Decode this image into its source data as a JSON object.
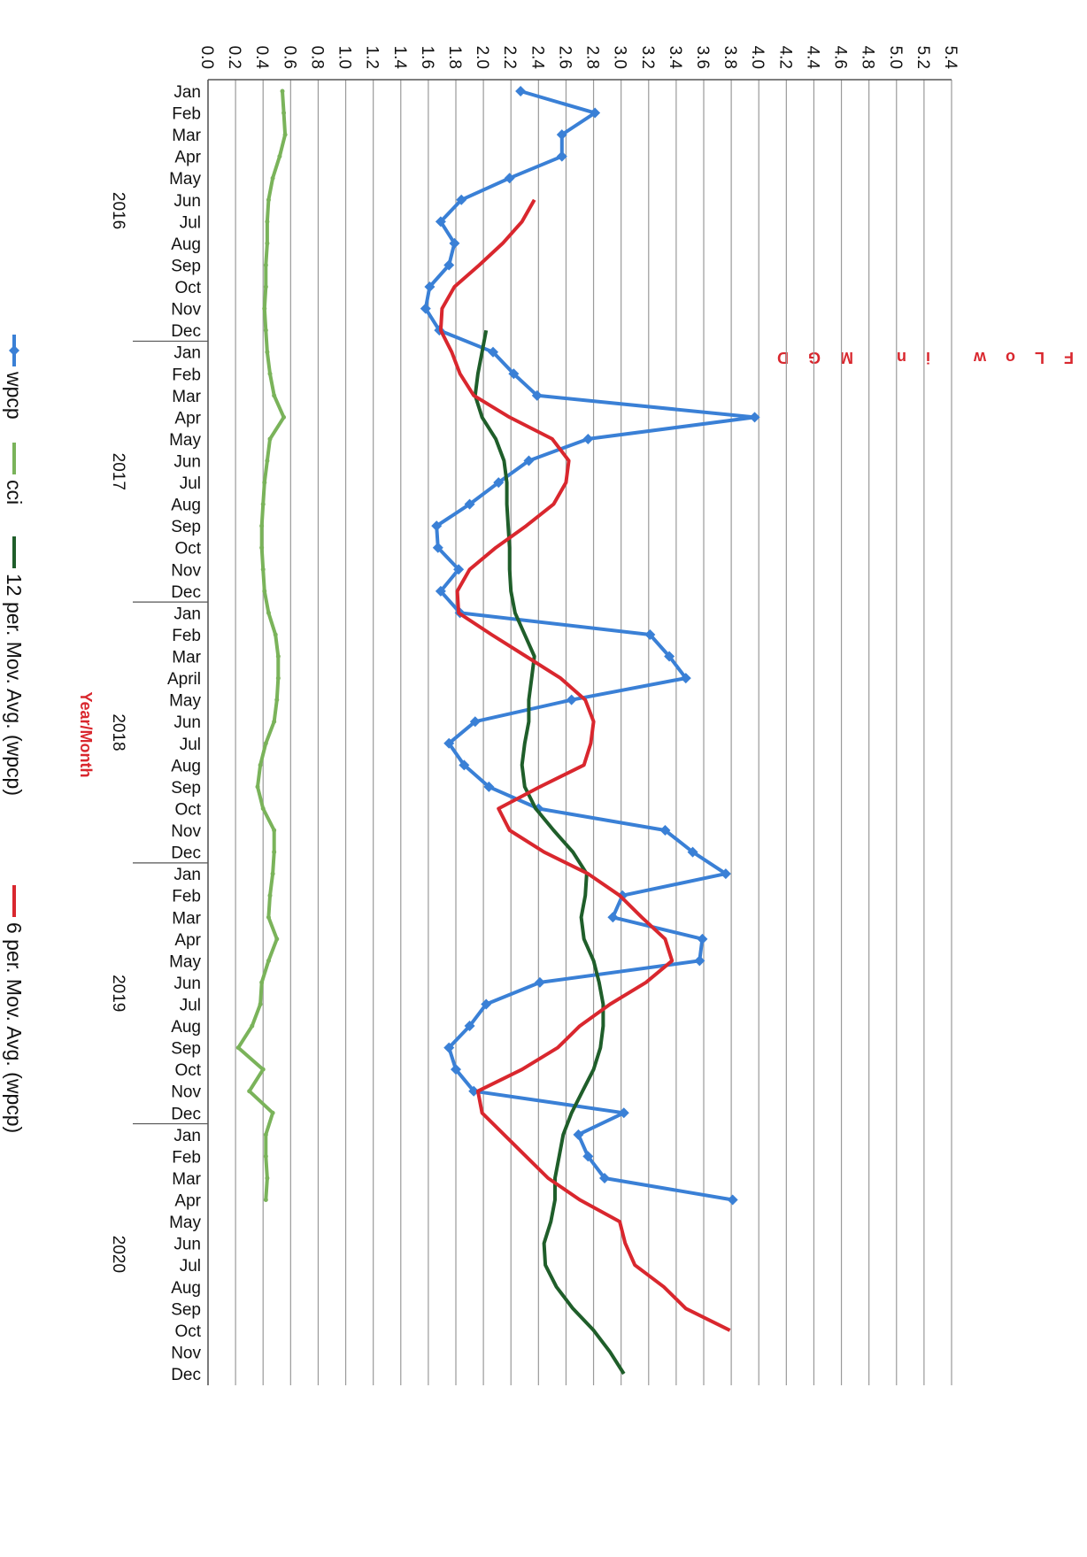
{
  "chart_data": {
    "type": "line",
    "y_label": "FLow in MGD",
    "x_label": "Year/Month",
    "years": [
      "2016",
      "2017",
      "2018",
      "2019",
      "2020"
    ],
    "categories": [
      "Jan",
      "Feb",
      "Mar",
      "Apr",
      "May",
      "Jun",
      "Jul",
      "Aug",
      "Sep",
      "Oct",
      "Nov",
      "Dec",
      "Jan",
      "Feb",
      "Mar",
      "Apr",
      "May",
      "Jun",
      "Jul",
      "Aug",
      "Sep",
      "Oct",
      "Nov",
      "Dec",
      "Jan",
      "Feb",
      "Mar",
      "April",
      "May",
      "Jun",
      "Jul",
      "Aug",
      "Sep",
      "Oct",
      "Nov",
      "Dec",
      "Jan",
      "Feb",
      "Mar",
      "Apr",
      "May",
      "Jun",
      "Jul",
      "Aug",
      "Sep",
      "Oct",
      "Nov",
      "Dec",
      "Jan",
      "Feb",
      "Mar",
      "Apr",
      "May",
      "Jun",
      "Jul",
      "Aug",
      "Sep",
      "Oct",
      "Nov",
      "Dec"
    ],
    "ylim": [
      0,
      5.4
    ],
    "yticks": [
      {
        "value": 0,
        "label": "0.0"
      },
      0.2,
      0.4,
      0.6,
      0.8,
      {
        "value": 1,
        "label": "1.0"
      },
      1.2,
      1.4,
      1.6,
      1.8,
      {
        "value": 2,
        "label": "2.0"
      },
      2.2,
      2.4,
      2.6,
      2.8,
      {
        "value": 3,
        "label": "3.0"
      },
      3.2,
      3.4,
      3.6,
      3.8,
      {
        "value": 4,
        "label": "4.0"
      },
      4.2,
      4.4,
      4.6,
      4.8,
      {
        "value": 5,
        "label": "5.0"
      },
      5.2,
      5.4
    ],
    "grid": true,
    "series": [
      {
        "name": "wpcp",
        "color": "#3a80d6",
        "marker": "diamond",
        "values": [
          2.27,
          2.81,
          2.57,
          2.57,
          2.19,
          1.84,
          1.69,
          1.79,
          1.75,
          1.61,
          1.58,
          1.68,
          2.07,
          2.22,
          2.39,
          3.97,
          2.76,
          2.33,
          2.11,
          1.9,
          1.66,
          1.67,
          1.82,
          1.69,
          1.83,
          3.21,
          3.35,
          3.47,
          2.64,
          1.94,
          1.75,
          1.86,
          2.04,
          2.4,
          3.32,
          3.52,
          3.76,
          3.01,
          2.94,
          3.59,
          3.57,
          2.41,
          2.02,
          1.9,
          1.75,
          1.8,
          1.93,
          3.02,
          2.69,
          2.76,
          2.88,
          3.81,
          null,
          null,
          null,
          null,
          null,
          null,
          null,
          null
        ]
      },
      {
        "name": "cci",
        "color": "#7ab35a",
        "marker": "dot",
        "values": [
          0.54,
          0.55,
          0.56,
          0.52,
          0.47,
          0.44,
          0.43,
          0.43,
          0.42,
          0.42,
          0.41,
          0.42,
          0.43,
          0.45,
          0.48,
          0.55,
          0.45,
          0.43,
          0.41,
          0.4,
          0.39,
          0.39,
          0.4,
          0.41,
          0.44,
          0.49,
          0.51,
          0.51,
          0.5,
          0.48,
          0.42,
          0.38,
          0.36,
          0.4,
          0.48,
          0.48,
          0.47,
          0.45,
          0.44,
          0.5,
          0.44,
          0.39,
          0.38,
          0.32,
          0.22,
          0.4,
          0.3,
          0.47,
          0.42,
          0.42,
          0.43,
          0.42,
          null,
          null,
          null,
          null,
          null,
          null,
          null,
          null
        ]
      },
      {
        "name": "12 per. Mov. Avg. (wpcp)",
        "color": "#1f5e2a",
        "marker": "none",
        "values": [
          null,
          null,
          null,
          null,
          null,
          null,
          null,
          null,
          null,
          null,
          null,
          2.02,
          1.99,
          1.96,
          1.94,
          1.99,
          2.09,
          2.15,
          2.17,
          2.17,
          2.18,
          2.19,
          2.19,
          2.2,
          2.23,
          2.3,
          2.37,
          2.35,
          2.33,
          2.33,
          2.3,
          2.28,
          2.3,
          2.38,
          2.51,
          2.65,
          2.75,
          2.74,
          2.71,
          2.73,
          2.8,
          2.84,
          2.87,
          2.87,
          2.85,
          2.8,
          2.72,
          2.64,
          2.58,
          2.55,
          2.52,
          2.52,
          2.49,
          2.44,
          2.45,
          2.53,
          2.65,
          2.8,
          2.92,
          3.02
        ]
      },
      {
        "name": "6 per. Mov. Avg. (wpcp)",
        "color": "#d9272e",
        "marker": "none",
        "values": [
          null,
          null,
          null,
          null,
          null,
          2.37,
          2.28,
          2.14,
          1.97,
          1.79,
          1.7,
          1.69,
          1.77,
          1.83,
          1.93,
          2.19,
          2.5,
          2.62,
          2.6,
          2.51,
          2.31,
          2.09,
          1.9,
          1.81,
          1.82,
          2.06,
          2.31,
          2.56,
          2.74,
          2.8,
          2.78,
          2.73,
          2.41,
          2.11,
          2.19,
          2.44,
          2.76,
          2.99,
          3.15,
          3.32,
          3.37,
          3.18,
          2.92,
          2.7,
          2.54,
          2.28,
          1.96,
          1.99,
          2.15,
          2.31,
          2.47,
          2.7,
          2.99,
          3.03,
          3.1,
          3.31,
          3.47,
          3.79,
          null,
          null
        ]
      }
    ]
  }
}
